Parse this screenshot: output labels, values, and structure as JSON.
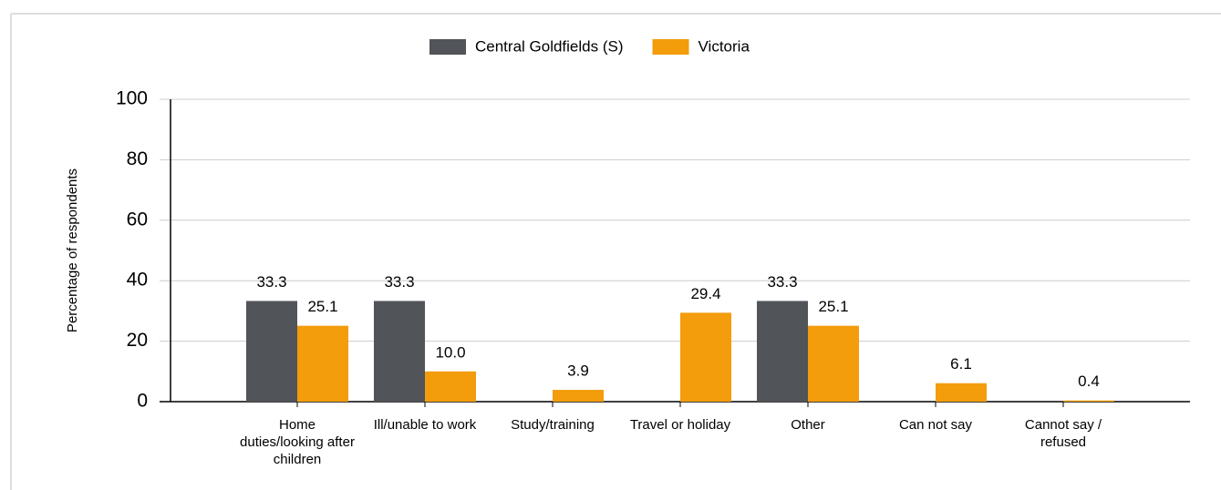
{
  "chart_data": {
    "type": "bar",
    "y_axis_label": "Percentage of respondents",
    "categories": [
      "Home duties/looking after children",
      "Ill/unable to work",
      "Study/training",
      "Travel or holiday",
      "Other",
      "Can not say",
      "Cannot say / refused"
    ],
    "series": [
      {
        "name": "Central Goldfields (S)",
        "color": "#515459",
        "values": [
          33.3,
          33.3,
          null,
          null,
          33.3,
          null,
          null
        ]
      },
      {
        "name": "Victoria",
        "color": "#f39c0c",
        "values": [
          25.1,
          10.0,
          3.9,
          29.4,
          25.1,
          6.1,
          0.4
        ],
        "value_labels": [
          "25.1",
          "10.0",
          "3.9",
          "29.4",
          "25.1",
          "6.1",
          "0.4"
        ]
      }
    ],
    "ylim": [
      0,
      100
    ],
    "yticks": [
      0,
      20,
      40,
      60,
      80,
      100
    ],
    "grid": true,
    "legend": "top"
  }
}
